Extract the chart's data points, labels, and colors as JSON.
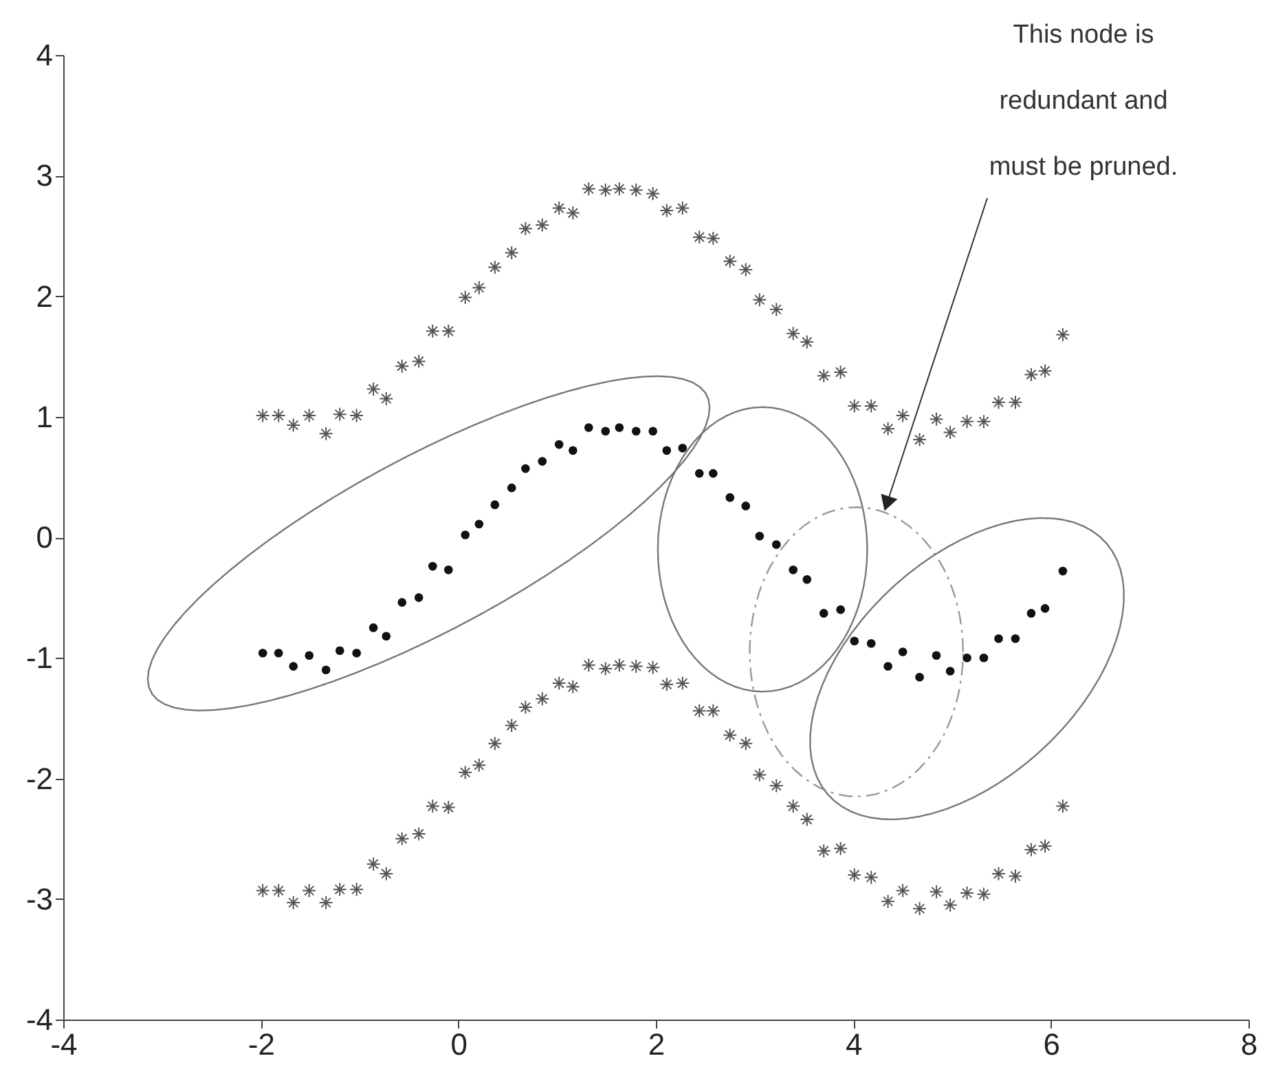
{
  "chart_data": {
    "type": "scatter",
    "xlim": [
      -4,
      8
    ],
    "ylim": [
      -4,
      4
    ],
    "xticks": [
      -4,
      -2,
      0,
      2,
      4,
      6,
      8
    ],
    "yticks": [
      -4,
      -3,
      -2,
      -1,
      0,
      1,
      2,
      3,
      4
    ],
    "grid": false,
    "annotations": [
      "This node is redundant and must be pruned."
    ],
    "series": [
      {
        "marker": "circle",
        "color": "#111111",
        "x": [
          -1.98,
          -1.82,
          -1.67,
          -1.51,
          -1.34,
          -1.2,
          -1.03,
          -0.86,
          -0.73,
          -0.57,
          -0.4,
          -0.26,
          -0.1,
          0.07,
          0.21,
          0.37,
          0.54,
          0.68,
          0.85,
          1.02,
          1.16,
          1.32,
          1.49,
          1.63,
          1.8,
          1.97,
          2.11,
          2.27,
          2.44,
          2.58,
          2.75,
          2.91,
          3.05,
          3.22,
          3.39,
          3.53,
          3.7,
          3.87,
          4.01,
          4.18,
          4.35,
          4.5,
          4.67,
          4.84,
          4.98,
          5.15,
          5.32,
          5.47,
          5.64,
          5.8,
          5.94,
          6.12
        ],
        "values": [
          -0.96,
          -0.96,
          -1.07,
          -0.98,
          -1.1,
          -0.94,
          -0.96,
          -0.75,
          -0.82,
          -0.54,
          -0.5,
          -0.24,
          -0.27,
          0.02,
          0.11,
          0.27,
          0.41,
          0.57,
          0.63,
          0.77,
          0.72,
          0.91,
          0.88,
          0.91,
          0.88,
          0.88,
          0.72,
          0.74,
          0.53,
          0.53,
          0.33,
          0.26,
          0.01,
          -0.06,
          -0.27,
          -0.35,
          -0.63,
          -0.6,
          -0.86,
          -0.88,
          -1.07,
          -0.95,
          -1.16,
          -0.98,
          -1.11,
          -1.0,
          -1.0,
          -0.84,
          -0.84,
          -0.63,
          -0.59,
          -0.28
        ]
      },
      {
        "marker": "cross",
        "color": "#555555",
        "x": [
          -1.98,
          -1.82,
          -1.67,
          -1.51,
          -1.34,
          -1.2,
          -1.03,
          -0.86,
          -0.73,
          -0.57,
          -0.4,
          -0.26,
          -0.1,
          0.07,
          0.21,
          0.37,
          0.54,
          0.68,
          0.85,
          1.02,
          1.16,
          1.32,
          1.49,
          1.63,
          1.8,
          1.97,
          2.11,
          2.27,
          2.44,
          2.58,
          2.75,
          2.91,
          3.05,
          3.22,
          3.39,
          3.53,
          3.7,
          3.87,
          4.01,
          4.18,
          4.35,
          4.5,
          4.67,
          4.84,
          4.98,
          5.15,
          5.32,
          5.47,
          5.64,
          5.8,
          5.94,
          6.12
        ],
        "values": [
          1.01,
          1.01,
          0.93,
          1.01,
          0.86,
          1.02,
          1.01,
          1.23,
          1.15,
          1.42,
          1.46,
          1.71,
          1.71,
          1.99,
          2.07,
          2.24,
          2.36,
          2.56,
          2.59,
          2.73,
          2.69,
          2.89,
          2.88,
          2.89,
          2.88,
          2.85,
          2.71,
          2.73,
          2.49,
          2.48,
          2.29,
          2.22,
          1.97,
          1.89,
          1.69,
          1.62,
          1.34,
          1.37,
          1.09,
          1.09,
          0.9,
          1.01,
          0.81,
          0.98,
          0.87,
          0.96,
          0.96,
          1.12,
          1.12,
          1.35,
          1.38,
          1.68
        ]
      },
      {
        "marker": "cross",
        "color": "#555555",
        "x": [
          -1.98,
          -1.82,
          -1.67,
          -1.51,
          -1.34,
          -1.2,
          -1.03,
          -0.86,
          -0.73,
          -0.57,
          -0.4,
          -0.26,
          -0.1,
          0.07,
          0.21,
          0.37,
          0.54,
          0.68,
          0.85,
          1.02,
          1.16,
          1.32,
          1.49,
          1.63,
          1.8,
          1.97,
          2.11,
          2.27,
          2.44,
          2.58,
          2.75,
          2.91,
          3.05,
          3.22,
          3.39,
          3.53,
          3.7,
          3.87,
          4.01,
          4.18,
          4.35,
          4.5,
          4.67,
          4.84,
          4.98,
          5.15,
          5.32,
          5.47,
          5.64,
          5.8,
          5.94,
          6.12
        ],
        "values": [
          -2.93,
          -2.93,
          -3.03,
          -2.93,
          -3.03,
          -2.92,
          -2.92,
          -2.71,
          -2.79,
          -2.5,
          -2.46,
          -2.23,
          -2.24,
          -1.95,
          -1.89,
          -1.71,
          -1.56,
          -1.41,
          -1.34,
          -1.21,
          -1.24,
          -1.06,
          -1.09,
          -1.06,
          -1.07,
          -1.08,
          -1.22,
          -1.21,
          -1.44,
          -1.44,
          -1.64,
          -1.71,
          -1.97,
          -2.06,
          -2.23,
          -2.34,
          -2.6,
          -2.58,
          -2.8,
          -2.82,
          -3.02,
          -2.93,
          -3.08,
          -2.94,
          -3.05,
          -2.95,
          -2.96,
          -2.79,
          -2.81,
          -2.59,
          -2.56,
          -2.23
        ]
      }
    ]
  }
}
